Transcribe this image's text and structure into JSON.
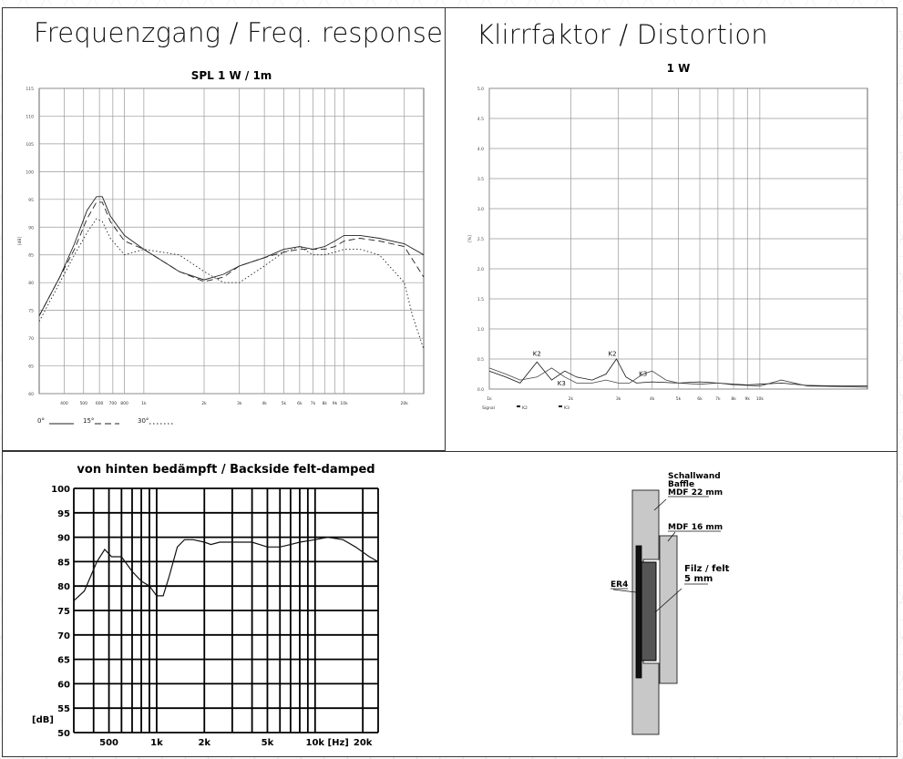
{
  "freq_panel": {
    "title": "Frequenzgang / Freq. response",
    "legend": [
      {
        "label": "0°",
        "style": "solid"
      },
      {
        "label": "15°",
        "style": "dashed"
      },
      {
        "label": "30°",
        "style": "dotted"
      }
    ]
  },
  "distortion_panel": {
    "title": "Klirrfaktor / Distortion",
    "legend_prefix": "Signal",
    "legend_items": [
      "K2",
      "K3"
    ]
  },
  "mounting_diagram": {
    "labels": {
      "baffle": "Schallwand\nBaffle\nMDF 22 mm",
      "mdf16": "MDF 16 mm",
      "felt": "Filz / felt\n5 mm",
      "driver": "ER4"
    }
  },
  "chart_data": [
    {
      "type": "line",
      "title": "SPL 1 W / 1m",
      "xlabel": "",
      "ylabel": "[dB]",
      "x_scale": "log",
      "xlim": [
        300,
        25000
      ],
      "ylim": [
        60,
        115
      ],
      "x_ticks": [
        "400",
        "500",
        "600",
        "700",
        "800",
        "1k",
        "2k",
        "3k",
        "4k",
        "5k",
        "6k",
        "7k",
        "8k",
        "9k",
        "10k",
        "20k"
      ],
      "x_tick_values": [
        400,
        500,
        600,
        700,
        800,
        1000,
        2000,
        3000,
        4000,
        5000,
        6000,
        7000,
        8000,
        9000,
        10000,
        20000
      ],
      "y_ticks": [
        "60",
        "65",
        "70",
        "75",
        "80",
        "85",
        "90",
        "95",
        "100",
        "105",
        "110",
        "115"
      ],
      "y_tick_values": [
        60,
        65,
        70,
        75,
        80,
        85,
        90,
        95,
        100,
        105,
        110,
        115
      ],
      "series": [
        {
          "name": "0°",
          "style": "solid",
          "x": [
            300,
            380,
            450,
            520,
            580,
            620,
            680,
            800,
            1000,
            1500,
            2000,
            2500,
            3000,
            4000,
            5000,
            6000,
            7000,
            8000,
            9000,
            10000,
            12000,
            15000,
            20000,
            25000
          ],
          "y": [
            74,
            81,
            87,
            93,
            95.5,
            95.5,
            92,
            88.5,
            86,
            82,
            80.5,
            81.5,
            83,
            84.5,
            86,
            86.5,
            86,
            86.5,
            87.5,
            88.5,
            88.5,
            88,
            87,
            85
          ]
        },
        {
          "name": "15°",
          "style": "dashed",
          "x": [
            300,
            380,
            450,
            520,
            580,
            620,
            680,
            800,
            1000,
            1500,
            2000,
            2500,
            3000,
            4000,
            5000,
            6000,
            7000,
            8000,
            9000,
            10000,
            12000,
            15000,
            20000,
            25000
          ],
          "y": [
            74,
            81,
            86,
            91.5,
            94.5,
            94.5,
            91,
            87.5,
            86,
            82,
            80.2,
            81,
            83,
            84.5,
            85.5,
            86,
            86,
            86,
            86.5,
            87.5,
            88,
            87.5,
            86.5,
            81
          ]
        },
        {
          "name": "30°",
          "style": "dotted",
          "x": [
            300,
            380,
            450,
            520,
            580,
            620,
            680,
            800,
            1000,
            1500,
            2000,
            2500,
            3000,
            4000,
            5000,
            6000,
            7000,
            8000,
            9000,
            10000,
            12000,
            15000,
            20000,
            22000,
            25000
          ],
          "y": [
            73,
            80,
            85,
            89,
            91.5,
            91,
            88,
            85,
            86,
            85,
            82,
            80,
            80,
            83,
            85.5,
            86.5,
            85,
            85,
            85.5,
            86,
            86,
            85,
            80,
            74,
            68
          ]
        }
      ]
    },
    {
      "type": "line",
      "title": "1 W",
      "xlabel": "",
      "ylabel": "[%]",
      "x_scale": "log",
      "xlim": [
        1000,
        25000
      ],
      "ylim": [
        0,
        5
      ],
      "x_ticks": [
        "1k",
        "2k",
        "3k",
        "4k",
        "5k",
        "6k",
        "7k",
        "8k",
        "9k",
        "10k"
      ],
      "x_tick_values": [
        1000,
        2000,
        3000,
        4000,
        5000,
        6000,
        7000,
        8000,
        9000,
        10000
      ],
      "y_ticks": [
        "0.0",
        "0.5",
        "1.0",
        "1.5",
        "2.0",
        "2.5",
        "3.0",
        "3.5",
        "4.0",
        "4.5",
        "5.0"
      ],
      "y_tick_values": [
        0,
        0.5,
        1,
        1.5,
        2,
        2.5,
        3,
        3.5,
        4,
        4.5,
        5
      ],
      "series": [
        {
          "name": "K2",
          "x": [
            1000,
            1150,
            1300,
            1500,
            1700,
            1900,
            2100,
            2400,
            2700,
            2950,
            3200,
            3500,
            4000,
            5000,
            6000,
            7000,
            8000,
            9000,
            10000,
            12000,
            15000,
            20000,
            25000
          ],
          "y": [
            0.3,
            0.2,
            0.1,
            0.45,
            0.15,
            0.3,
            0.2,
            0.15,
            0.25,
            0.5,
            0.2,
            0.1,
            0.12,
            0.1,
            0.12,
            0.1,
            0.08,
            0.07,
            0.08,
            0.1,
            0.06,
            0.05,
            0.05
          ]
        },
        {
          "name": "K3",
          "x": [
            1000,
            1150,
            1300,
            1500,
            1700,
            1900,
            2100,
            2400,
            2700,
            3000,
            3300,
            3700,
            4000,
            4500,
            5000,
            6000,
            7000,
            8000,
            9000,
            10000,
            12000,
            15000,
            20000,
            25000
          ],
          "y": [
            0.35,
            0.25,
            0.15,
            0.2,
            0.35,
            0.2,
            0.1,
            0.1,
            0.15,
            0.1,
            0.1,
            0.25,
            0.3,
            0.15,
            0.1,
            0.08,
            0.1,
            0.07,
            0.06,
            0.05,
            0.15,
            0.05,
            0.04,
            0.03
          ]
        }
      ]
    },
    {
      "type": "line",
      "title": "von hinten bedämpft / Backside felt-damped",
      "xlabel": "[Hz]",
      "ylabel": "[dB]",
      "x_scale": "log",
      "xlim": [
        300,
        25000
      ],
      "ylim": [
        50,
        100
      ],
      "x_ticks": [
        "500",
        "1k",
        "2k",
        "5k",
        "10k",
        "20k"
      ],
      "x_tick_values": [
        500,
        1000,
        2000,
        5000,
        10000,
        20000
      ],
      "y_ticks": [
        "50",
        "55",
        "60",
        "65",
        "70",
        "75",
        "80",
        "85",
        "90",
        "95",
        "100"
      ],
      "y_tick_values": [
        50,
        55,
        60,
        65,
        70,
        75,
        80,
        85,
        90,
        95,
        100
      ],
      "grid": true,
      "series": [
        {
          "name": "",
          "x": [
            300,
            350,
            420,
            470,
            520,
            600,
            700,
            800,
            900,
            1000,
            1100,
            1200,
            1350,
            1500,
            1700,
            2000,
            2200,
            2500,
            3000,
            4000,
            5000,
            6000,
            7000,
            8000,
            10000,
            12000,
            15000,
            18000,
            22000,
            25000
          ],
          "y": [
            77,
            79,
            85,
            87.5,
            86,
            86,
            83,
            81,
            80,
            78,
            78,
            82,
            88,
            89.5,
            89.5,
            89,
            88.5,
            89,
            89,
            89,
            88,
            88,
            88.5,
            89,
            89.5,
            90,
            89.5,
            88,
            86,
            85
          ]
        }
      ]
    }
  ]
}
